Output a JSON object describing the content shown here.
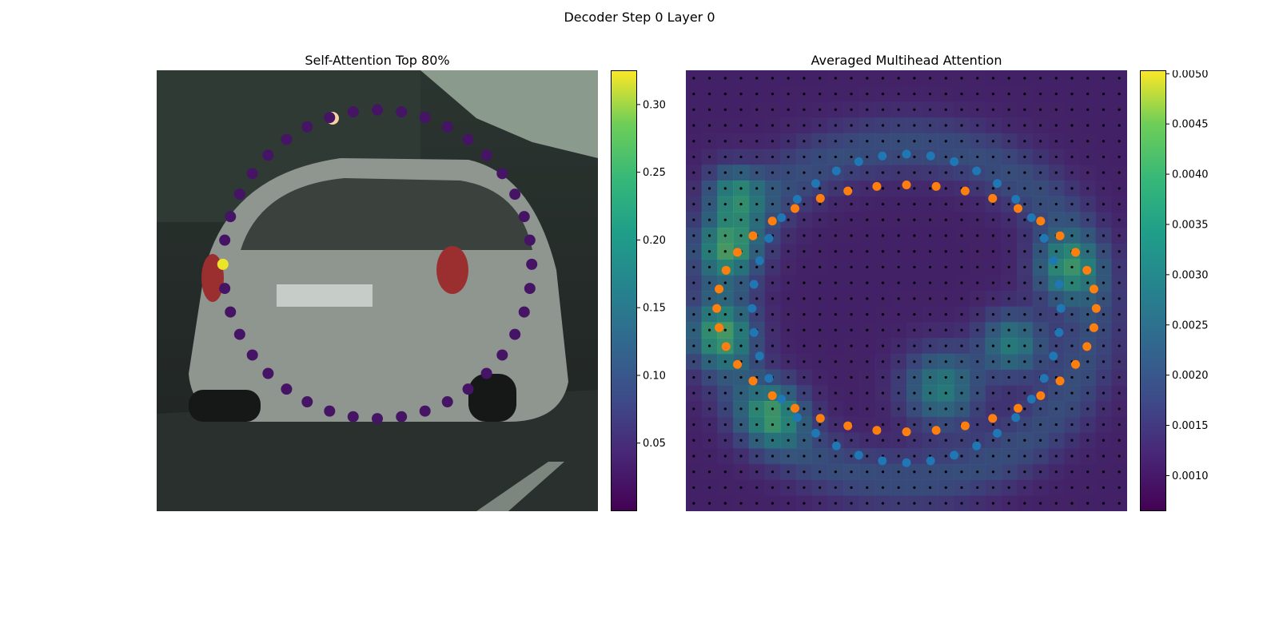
{
  "suptitle": "Decoder Step 0 Layer 0",
  "chart_data": [
    {
      "type": "scatter",
      "title": "Self-Attention Top 80%",
      "description_of_background": "photo",
      "colormap": "viridis",
      "colorbar": {
        "range": [
          0.0,
          0.325
        ],
        "ticks": [
          "0.05",
          "0.10",
          "0.15",
          "0.20",
          "0.25",
          "0.30"
        ],
        "tick_values": [
          0.05,
          0.1,
          0.15,
          0.2,
          0.25,
          0.3
        ]
      },
      "ring": {
        "center": [
          0.5,
          0.44
        ],
        "radius_x": 0.35,
        "radius_y": 0.35,
        "count": 40
      },
      "point_values": {
        "default": 0.02,
        "highlight_index": 10,
        "highlight_value": 0.32
      }
    },
    {
      "type": "heatmap",
      "title": "Averaged Multihead Attention",
      "colormap": "viridis",
      "colorbar": {
        "range": [
          0.00065,
          0.00503
        ],
        "ticks": [
          "0.0010",
          "0.0015",
          "0.0020",
          "0.0025",
          "0.0030",
          "0.0035",
          "0.0040",
          "0.0045",
          "0.0050"
        ],
        "tick_values": [
          0.001,
          0.0015,
          0.002,
          0.0025,
          0.003,
          0.0035,
          0.004,
          0.0045,
          0.005
        ]
      },
      "grid": {
        "rows": 28,
        "cols": 28
      },
      "series": [
        {
          "color": "#1f77b4",
          "count": 40,
          "center": [
            0.5,
            0.54
          ],
          "radius_x": 0.35,
          "radius_y": 0.35
        },
        {
          "color": "#ff7f0e",
          "count": 40,
          "center": [
            0.5,
            0.54
          ],
          "radius_x": 0.43,
          "radius_y": 0.28
        }
      ],
      "reference_points": {
        "color": "#000000",
        "rows": 28,
        "cols": 28
      }
    }
  ]
}
